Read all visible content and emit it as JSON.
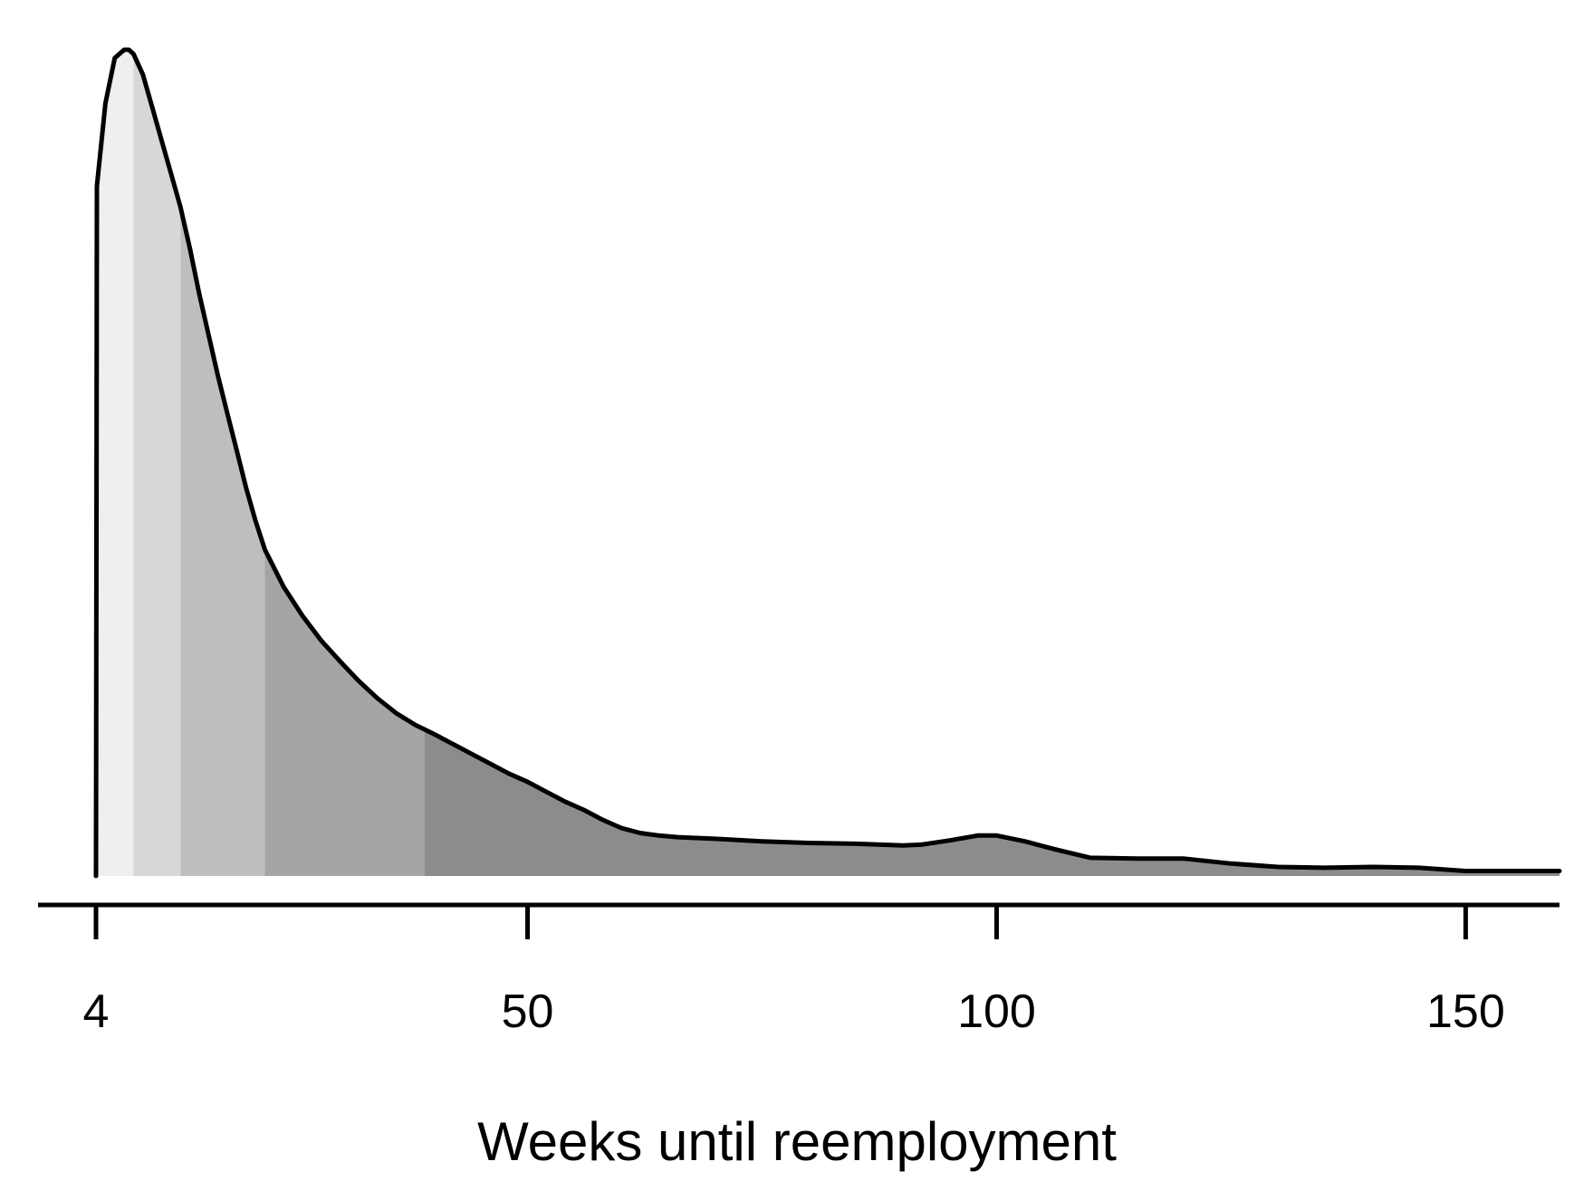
{
  "chart_data": {
    "type": "area",
    "subtype": "density",
    "title": "",
    "xlabel": "Weeks until reemployment",
    "ylabel": "",
    "xlim": [
      4,
      160
    ],
    "ylim": [
      0,
      1
    ],
    "y_axis_shown": false,
    "grid": false,
    "legend": "none",
    "x_ticks": [
      4,
      50,
      100,
      150
    ],
    "x_tick_labels": [
      "4",
      "50",
      "100",
      "150"
    ],
    "band_boundaries": [
      4,
      8,
      13,
      22,
      39,
      160
    ],
    "band_colors": [
      "#efefef",
      "#d7d7d7",
      "#bebebe",
      "#a5a5a5",
      "#8c8c8c"
    ],
    "series": [
      {
        "x": [
          4,
          4.1,
          5,
          6,
          7,
          7.5,
          8,
          9,
          10,
          11,
          12,
          13,
          14,
          15,
          16,
          17,
          18,
          19,
          20,
          21,
          22,
          24,
          26,
          28,
          30,
          32,
          34,
          36,
          38,
          40,
          42,
          44,
          46,
          48,
          50,
          52,
          54,
          56,
          58,
          60,
          62,
          64,
          66,
          68,
          70,
          75,
          80,
          85,
          90,
          92,
          95,
          98,
          100,
          103,
          106,
          110,
          115,
          120,
          125,
          130,
          135,
          140,
          145,
          150,
          155,
          160
        ],
        "y": [
          0,
          0.835,
          0.935,
          0.99,
          1.0,
          1.0,
          0.995,
          0.97,
          0.93,
          0.89,
          0.85,
          0.81,
          0.76,
          0.705,
          0.655,
          0.605,
          0.56,
          0.515,
          0.47,
          0.43,
          0.395,
          0.35,
          0.315,
          0.285,
          0.26,
          0.236,
          0.215,
          0.197,
          0.183,
          0.172,
          0.16,
          0.148,
          0.136,
          0.124,
          0.114,
          0.102,
          0.09,
          0.08,
          0.068,
          0.058,
          0.052,
          0.049,
          0.047,
          0.046,
          0.045,
          0.042,
          0.04,
          0.039,
          0.037,
          0.038,
          0.043,
          0.049,
          0.049,
          0.042,
          0.033,
          0.022,
          0.021,
          0.021,
          0.015,
          0.011,
          0.01,
          0.011,
          0.01,
          0.006,
          0.006,
          0.006
        ]
      }
    ]
  }
}
